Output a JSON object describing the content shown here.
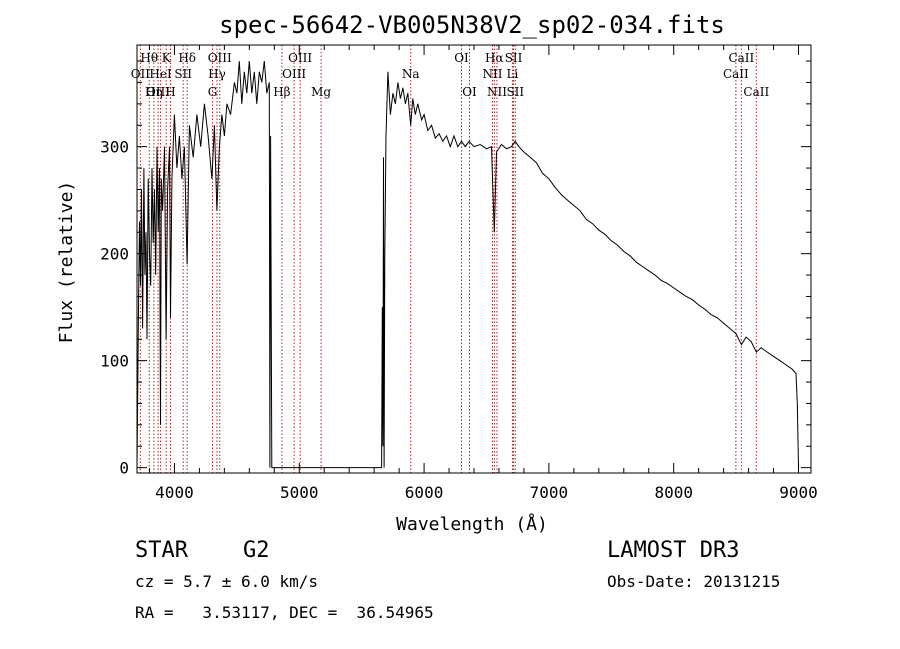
{
  "chart_data": {
    "type": "line",
    "title": "spec-56642-VB005N38V2_sp02-034.fits",
    "xlabel": "Wavelength (Å)",
    "ylabel": "Flux (relative)",
    "xlim": [
      3700,
      9100
    ],
    "ylim": [
      -5,
      395
    ],
    "xticks": [
      4000,
      5000,
      6000,
      7000,
      8000,
      9000
    ],
    "yticks": [
      0,
      100,
      200,
      300
    ],
    "grid": false,
    "series": [
      {
        "name": "flux",
        "color": "#000000",
        "points": [
          [
            3700,
            0
          ],
          [
            3705,
            60
          ],
          [
            3712,
            150
          ],
          [
            3720,
            230
          ],
          [
            3728,
            170
          ],
          [
            3736,
            260
          ],
          [
            3745,
            130
          ],
          [
            3755,
            280
          ],
          [
            3763,
            180
          ],
          [
            3772,
            220
          ],
          [
            3780,
            120
          ],
          [
            3790,
            270
          ],
          [
            3800,
            200
          ],
          [
            3810,
            170
          ],
          [
            3820,
            280
          ],
          [
            3830,
            210
          ],
          [
            3840,
            260
          ],
          [
            3850,
            180
          ],
          [
            3860,
            300
          ],
          [
            3870,
            220
          ],
          [
            3880,
            280
          ],
          [
            3888,
            40
          ],
          [
            3895,
            270
          ],
          [
            3905,
            240
          ],
          [
            3920,
            300
          ],
          [
            3933,
            120
          ],
          [
            3945,
            260
          ],
          [
            3960,
            300
          ],
          [
            3968,
            140
          ],
          [
            3980,
            270
          ],
          [
            4000,
            330
          ],
          [
            4020,
            280
          ],
          [
            4040,
            310
          ],
          [
            4060,
            270
          ],
          [
            4080,
            300
          ],
          [
            4101,
            190
          ],
          [
            4120,
            320
          ],
          [
            4150,
            290
          ],
          [
            4180,
            330
          ],
          [
            4210,
            300
          ],
          [
            4240,
            340
          ],
          [
            4270,
            310
          ],
          [
            4300,
            270
          ],
          [
            4320,
            320
          ],
          [
            4340,
            240
          ],
          [
            4360,
            300
          ],
          [
            4380,
            330
          ],
          [
            4400,
            310
          ],
          [
            4420,
            340
          ],
          [
            4450,
            330
          ],
          [
            4480,
            360
          ],
          [
            4500,
            350
          ],
          [
            4520,
            380
          ],
          [
            4540,
            340
          ],
          [
            4560,
            370
          ],
          [
            4580,
            350
          ],
          [
            4600,
            380
          ],
          [
            4620,
            350
          ],
          [
            4640,
            370
          ],
          [
            4660,
            340
          ],
          [
            4680,
            370
          ],
          [
            4700,
            360
          ],
          [
            4720,
            380
          ],
          [
            4740,
            350
          ],
          [
            4760,
            360
          ],
          [
            4765,
            0
          ],
          [
            4770,
            310
          ],
          [
            4780,
            0
          ],
          [
            5660,
            0
          ],
          [
            5665,
            150
          ],
          [
            5670,
            20
          ],
          [
            5675,
            290
          ],
          [
            5680,
            0
          ],
          [
            5685,
            200
          ],
          [
            5695,
            310
          ],
          [
            5710,
            370
          ],
          [
            5730,
            330
          ],
          [
            5750,
            350
          ],
          [
            5770,
            340
          ],
          [
            5790,
            360
          ],
          [
            5810,
            345
          ],
          [
            5830,
            355
          ],
          [
            5850,
            340
          ],
          [
            5870,
            350
          ],
          [
            5893,
            320
          ],
          [
            5910,
            345
          ],
          [
            5930,
            330
          ],
          [
            5950,
            340
          ],
          [
            5980,
            325
          ],
          [
            6000,
            330
          ],
          [
            6030,
            315
          ],
          [
            6060,
            320
          ],
          [
            6090,
            308
          ],
          [
            6120,
            312
          ],
          [
            6150,
            305
          ],
          [
            6180,
            310
          ],
          [
            6210,
            300
          ],
          [
            6240,
            310
          ],
          [
            6270,
            300
          ],
          [
            6300,
            305
          ],
          [
            6330,
            300
          ],
          [
            6360,
            305
          ],
          [
            6400,
            300
          ],
          [
            6450,
            302
          ],
          [
            6500,
            298
          ],
          [
            6540,
            300
          ],
          [
            6563,
            220
          ],
          [
            6580,
            295
          ],
          [
            6620,
            302
          ],
          [
            6660,
            298
          ],
          [
            6700,
            300
          ],
          [
            6730,
            305
          ],
          [
            6760,
            300
          ],
          [
            6800,
            295
          ],
          [
            6850,
            290
          ],
          [
            6900,
            285
          ],
          [
            6950,
            275
          ],
          [
            7000,
            270
          ],
          [
            7050,
            262
          ],
          [
            7100,
            255
          ],
          [
            7150,
            250
          ],
          [
            7200,
            245
          ],
          [
            7250,
            240
          ],
          [
            7300,
            232
          ],
          [
            7350,
            228
          ],
          [
            7400,
            222
          ],
          [
            7450,
            218
          ],
          [
            7500,
            212
          ],
          [
            7550,
            208
          ],
          [
            7600,
            202
          ],
          [
            7650,
            198
          ],
          [
            7700,
            192
          ],
          [
            7750,
            188
          ],
          [
            7800,
            184
          ],
          [
            7850,
            180
          ],
          [
            7900,
            175
          ],
          [
            7950,
            172
          ],
          [
            8000,
            168
          ],
          [
            8050,
            164
          ],
          [
            8100,
            160
          ],
          [
            8150,
            157
          ],
          [
            8200,
            152
          ],
          [
            8250,
            148
          ],
          [
            8300,
            143
          ],
          [
            8350,
            140
          ],
          [
            8400,
            135
          ],
          [
            8450,
            130
          ],
          [
            8500,
            125
          ],
          [
            8542,
            115
          ],
          [
            8580,
            122
          ],
          [
            8620,
            118
          ],
          [
            8662,
            108
          ],
          [
            8700,
            112
          ],
          [
            8750,
            108
          ],
          [
            8800,
            104
          ],
          [
            8850,
            100
          ],
          [
            8900,
            96
          ],
          [
            8950,
            92
          ],
          [
            8980,
            88
          ],
          [
            8990,
            60
          ],
          [
            9000,
            0
          ]
        ]
      }
    ],
    "annotations": [
      {
        "label": "Hθ",
        "x": 3798,
        "row": 1
      },
      {
        "label": "OII",
        "x": 3727,
        "row": 2
      },
      {
        "label": "OIII",
        "x": 3869,
        "row": 3
      },
      {
        "label": "K",
        "x": 3934,
        "row": 1
      },
      {
        "label": "HeI",
        "x": 3889,
        "row": 2
      },
      {
        "label": "Hη",
        "x": 3835,
        "row": 3
      },
      {
        "label": "Hδ",
        "x": 4102,
        "row": 1
      },
      {
        "label": "SII",
        "x": 4070,
        "row": 2
      },
      {
        "label": "H",
        "x": 3968,
        "row": 3
      },
      {
        "label": "OIII",
        "x": 4363,
        "row": 1
      },
      {
        "label": "Hγ",
        "x": 4341,
        "row": 2
      },
      {
        "label": "G",
        "x": 4305,
        "row": 3
      },
      {
        "label": "OIII",
        "x": 5007,
        "row": 1
      },
      {
        "label": "OIII",
        "x": 4959,
        "row": 2
      },
      {
        "label": "Hβ",
        "x": 4861,
        "row": 3
      },
      {
        "label": "Na",
        "x": 5893,
        "row": 2
      },
      {
        "label": "Mg",
        "x": 5175,
        "row": 3
      },
      {
        "label": "OI",
        "x": 6300,
        "row": 1
      },
      {
        "label": "OI",
        "x": 6364,
        "row": 3
      },
      {
        "label": "Hα",
        "x": 6563,
        "row": 1
      },
      {
        "label": "NII",
        "x": 6548,
        "row": 2
      },
      {
        "label": "NII",
        "x": 6584,
        "row": 3
      },
      {
        "label": "SII",
        "x": 6717,
        "row": 1
      },
      {
        "label": "Li",
        "x": 6708,
        "row": 2
      },
      {
        "label": "SII",
        "x": 6731,
        "row": 3
      },
      {
        "label": "CaII",
        "x": 8542,
        "row": 1
      },
      {
        "label": "CaII",
        "x": 8498,
        "row": 2
      },
      {
        "label": "CaII",
        "x": 8662,
        "row": 3
      }
    ],
    "annotation_line_color": "#b22222"
  },
  "footer": {
    "object_class": "STAR",
    "subclass": "G2",
    "cz": "cz = 5.7 ± 6.0 km/s",
    "coords": "RA =   3.53117, DEC =  36.54965",
    "survey": "LAMOST DR3",
    "obs_date": "Obs-Date: 20131215"
  }
}
